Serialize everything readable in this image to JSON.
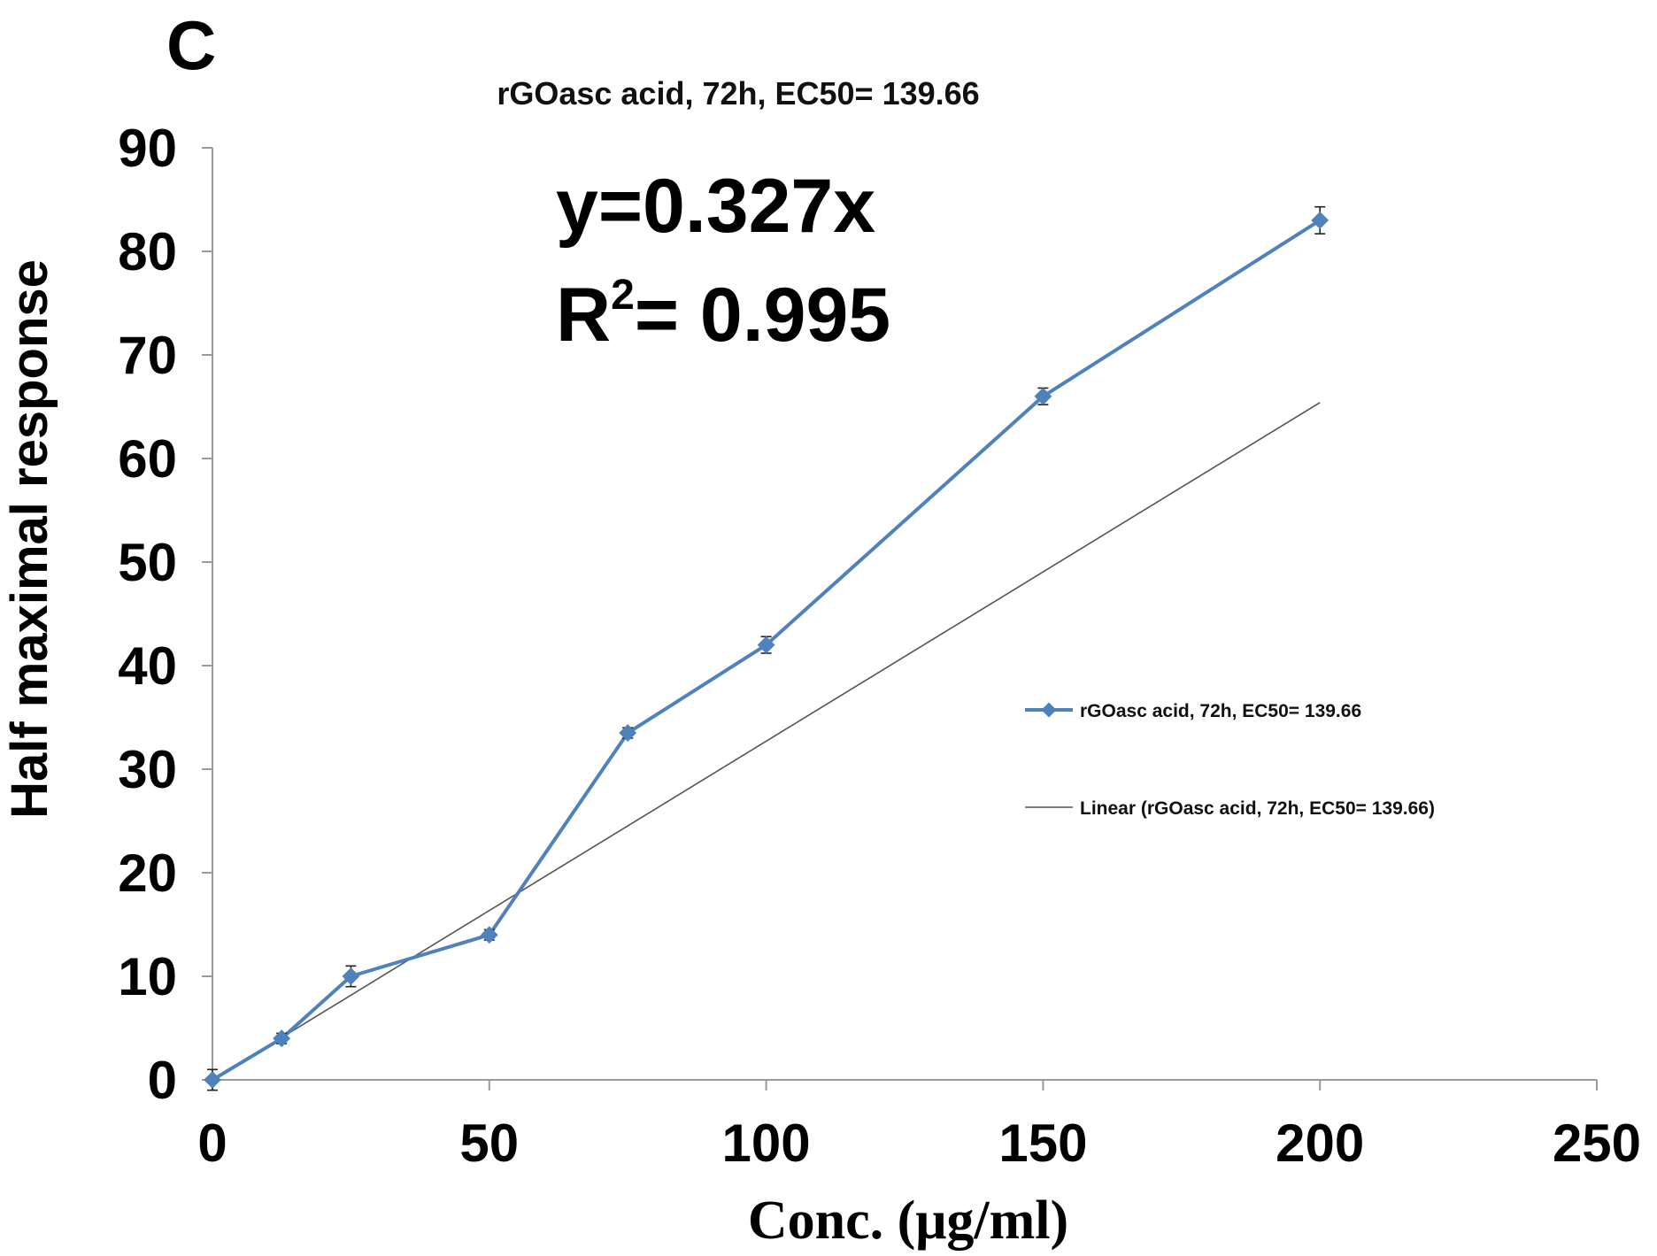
{
  "panel_letter": "C",
  "chart_data": {
    "type": "line",
    "title": "rGOasc acid, 72h, EC50= 139.66",
    "xlabel": "Conc. (μg/ml)",
    "ylabel": "Half maximal response",
    "xlim": [
      0,
      250
    ],
    "ylim": [
      0,
      90
    ],
    "x_ticks": [
      "0",
      "50",
      "100",
      "150",
      "200",
      "250"
    ],
    "y_ticks": [
      "0",
      "10",
      "20",
      "30",
      "40",
      "50",
      "60",
      "70",
      "80",
      "90"
    ],
    "grid": false,
    "series": [
      {
        "name": "rGOasc acid, 72h, EC50= 139.66",
        "color": "#4f81bd",
        "x": [
          0,
          12.5,
          25,
          50,
          75,
          100,
          150,
          200
        ],
        "y": [
          0,
          4,
          10,
          14,
          33.5,
          42,
          66,
          83
        ],
        "error": [
          1,
          0.5,
          1,
          0.5,
          0.5,
          0.8,
          0.8,
          1.3
        ]
      }
    ],
    "trendline": {
      "name": "Linear (rGOasc acid, 72h, EC50= 139.66)",
      "color": "#555555",
      "slope": 0.327,
      "x_range": [
        0,
        200
      ]
    },
    "annotations": {
      "equation": "y=0.327x",
      "r2_prefix": "R",
      "r2_sup": "2",
      "r2_rest": "= 0.995"
    },
    "legend_position": "right"
  }
}
